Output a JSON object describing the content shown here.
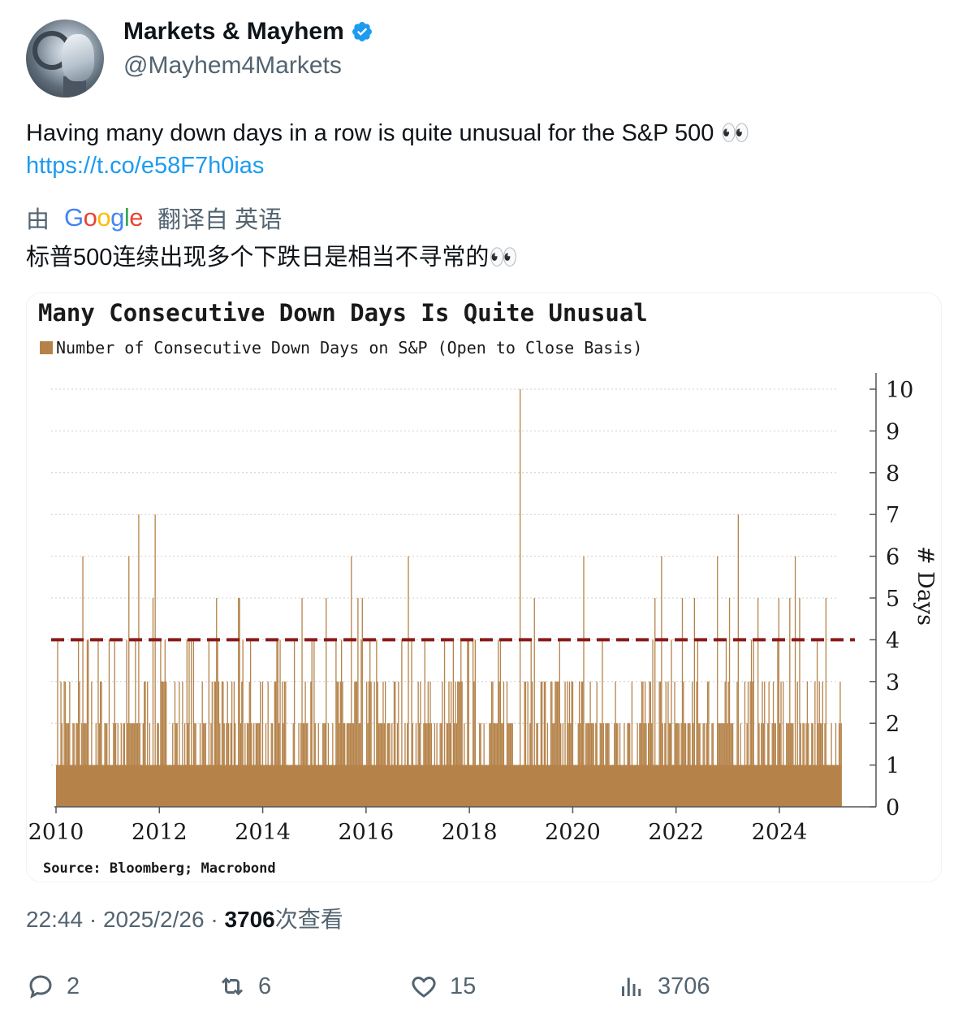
{
  "author": {
    "display_name": "Markets & Mayhem",
    "handle": "@Mayhem4Markets",
    "verified_icon": "verified-badge-icon",
    "avatar_icon": "robot-avatar"
  },
  "tweet": {
    "text": "Having many down days in a row is quite unusual for the S&P 500 👀",
    "link": "https://t.co/e58F7h0ias"
  },
  "translation": {
    "prefix": "由",
    "provider": "Google",
    "suffix": "翻译自 英语",
    "text": "标普500连续出现多个下跌日是相当不寻常的👀"
  },
  "chart_data": {
    "type": "bar",
    "title": "Many Consecutive Down Days Is Quite Unusual",
    "legend": "Number of Consecutive Down Days on S&P (Open to Close Basis)",
    "ylabel": "# Days",
    "source": "Source: Bloomberg; Macrobond",
    "x_ticks": [
      "2010",
      "2012",
      "2014",
      "2016",
      "2018",
      "2020",
      "2022",
      "2024"
    ],
    "y_ticks": [
      "0",
      "1",
      "2",
      "3",
      "4",
      "5",
      "6",
      "7",
      "8",
      "9",
      "10"
    ],
    "xlim": [
      2010,
      2025.2
    ],
    "ylim": [
      0,
      10
    ],
    "reference_line": {
      "value": 4,
      "style": "dashed",
      "color": "#8b1a1a"
    },
    "bar_color": "#b5834a",
    "y_axis_position": "right",
    "grid": true,
    "notable_spikes": [
      {
        "x": 2010.5,
        "y": 6
      },
      {
        "x": 2011.4,
        "y": 6
      },
      {
        "x": 2011.6,
        "y": 7
      },
      {
        "x": 2011.9,
        "y": 7
      },
      {
        "x": 2015.7,
        "y": 6
      },
      {
        "x": 2016.8,
        "y": 6
      },
      {
        "x": 2018.97,
        "y": 10
      },
      {
        "x": 2020.2,
        "y": 6
      },
      {
        "x": 2021.7,
        "y": 6
      },
      {
        "x": 2022.8,
        "y": 6
      },
      {
        "x": 2023.2,
        "y": 7
      },
      {
        "x": 2024.3,
        "y": 6
      },
      {
        "x": 2024.9,
        "y": 5
      }
    ]
  },
  "meta": {
    "time": "22:44",
    "separator": " · ",
    "date": "2025/2/26",
    "views": "3706",
    "views_label": "次查看"
  },
  "actions": {
    "reply_count": "2",
    "retweet_count": "6",
    "like_count": "15",
    "view_count": "3706"
  }
}
